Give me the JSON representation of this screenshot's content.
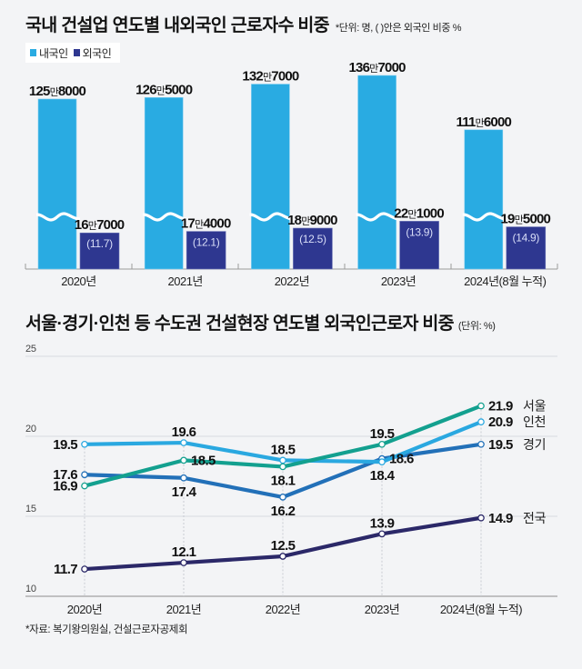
{
  "chart_data": [
    {
      "type": "bar",
      "title": "국내 건설업 연도별 내외국인 근로자수 비중",
      "note": "*단위: 명, ( )안은 외국인 비중 %",
      "categories": [
        "2020년",
        "2021년",
        "2022년",
        "2023년",
        "2024년(8월 누적)"
      ],
      "legend": [
        {
          "name": "내국인",
          "color": "#29abe2"
        },
        {
          "name": "외국인",
          "color": "#2e3790"
        }
      ],
      "legend_position": "top-left",
      "axis_break": true,
      "unit": "명",
      "series": [
        {
          "name": "내국인",
          "color": "#29abe2",
          "values": [
            1258000,
            1265000,
            1327000,
            1367000,
            1116000
          ],
          "labels": [
            "125만8000",
            "126만5000",
            "132만7000",
            "136만7000",
            "111만6000"
          ]
        },
        {
          "name": "외국인",
          "color": "#2e3790",
          "values": [
            167000,
            174000,
            189000,
            221000,
            195000
          ],
          "labels": [
            "16만7000",
            "17만4000",
            "18만9000",
            "22만1000",
            "19만5000"
          ],
          "share_pct": [
            11.7,
            12.1,
            12.5,
            13.9,
            14.9
          ],
          "share_labels": [
            "(11.7)",
            "(12.1)",
            "(12.5)",
            "(13.9)",
            "(14.9)"
          ]
        }
      ]
    },
    {
      "type": "line",
      "title": "서울·경기·인천 등 수도권 건설현장 연도별 외국인근로자 비중",
      "note": "(단위: %)",
      "categories": [
        "2020년",
        "2021년",
        "2022년",
        "2023년",
        "2024년(8월 누적)"
      ],
      "xlabel": "",
      "ylabel": "",
      "ylim": [
        10,
        25
      ],
      "yticks": [
        10,
        15,
        20,
        25
      ],
      "ytick_labels": [
        "10",
        "15",
        "20",
        "25"
      ],
      "grid": true,
      "series": [
        {
          "name": "서울",
          "color": "#13a08f",
          "values": [
            16.9,
            18.5,
            18.1,
            19.5,
            21.9
          ],
          "labels": [
            "16.9",
            "18.5",
            "18.1",
            "19.5",
            "21.9"
          ]
        },
        {
          "name": "인천",
          "color": "#2aa8e0",
          "values": [
            19.5,
            19.6,
            18.5,
            18.4,
            20.9
          ],
          "labels": [
            "19.5",
            "19.6",
            "18.5",
            "18.4",
            "20.9"
          ]
        },
        {
          "name": "경기",
          "color": "#2270b8",
          "values": [
            17.6,
            17.4,
            16.2,
            18.6,
            19.5
          ],
          "labels": [
            "17.6",
            "17.4",
            "16.2",
            "18.6",
            "19.5"
          ]
        },
        {
          "name": "전국",
          "color": "#2b2868",
          "values": [
            11.7,
            12.1,
            12.5,
            13.9,
            14.9
          ],
          "labels": [
            "11.7",
            "12.1",
            "12.5",
            "13.9",
            "14.9"
          ]
        }
      ]
    }
  ],
  "source": "*자료: 복기왕의원실, 건설근로자공제회"
}
